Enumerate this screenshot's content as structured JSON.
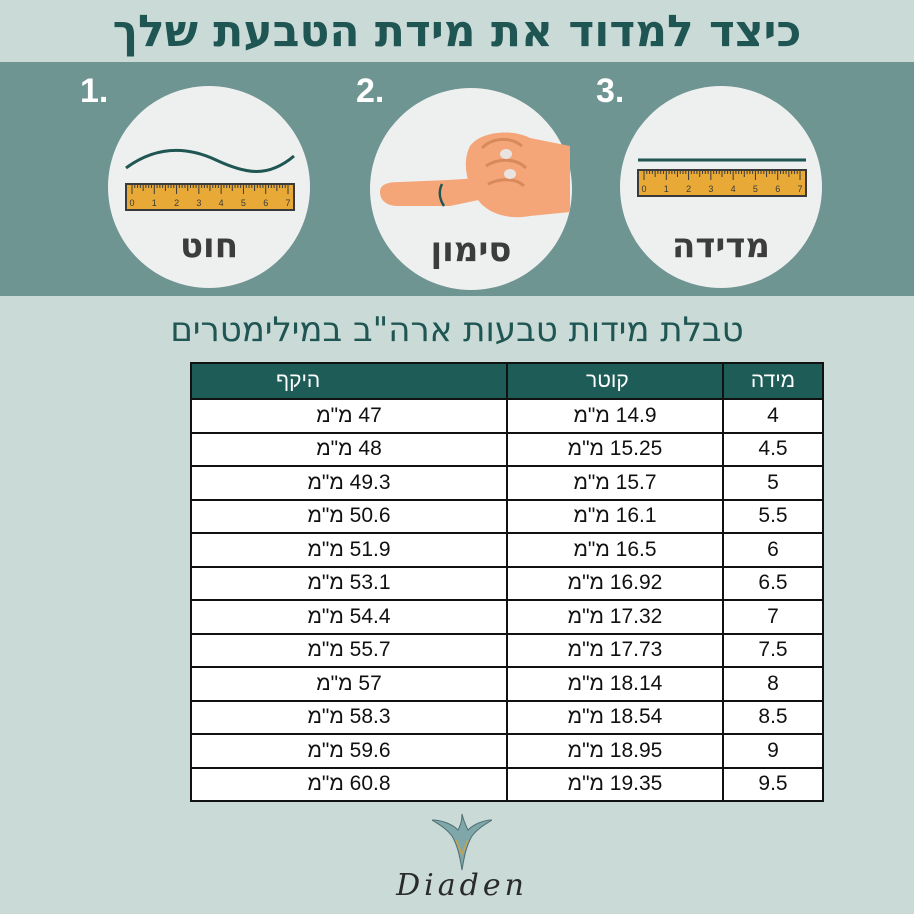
{
  "title": "כיצד למדוד את מידת הטבעת שלך",
  "steps": [
    {
      "number": "1.",
      "label": "חוט"
    },
    {
      "number": "2.",
      "label": "סימון"
    },
    {
      "number": "3.",
      "label": "מדידה"
    }
  ],
  "ruler_ticks": [
    "0",
    "1",
    "2",
    "3",
    "4",
    "5",
    "6",
    "7"
  ],
  "subtitle": "טבלת מידות טבעות ארה\"ב במילימטרים",
  "table": {
    "headers": {
      "circumference": "היקף",
      "diameter": "קוטר",
      "size": "מידה"
    },
    "rows": [
      {
        "circumference": "47 מ\"מ",
        "diameter": "14.9 מ\"מ",
        "size": "4"
      },
      {
        "circumference": "48 מ\"מ",
        "diameter": "15.25 מ\"מ",
        "size": "4.5"
      },
      {
        "circumference": "49.3 מ\"מ",
        "diameter": "15.7 מ\"מ",
        "size": "5"
      },
      {
        "circumference": "50.6 מ\"מ",
        "diameter": "16.1 מ\"מ",
        "size": "5.5"
      },
      {
        "circumference": "51.9 מ\"מ",
        "diameter": "16.5 מ\"מ",
        "size": "6"
      },
      {
        "circumference": "53.1 מ\"מ",
        "diameter": "16.92 מ\"מ",
        "size": "6.5"
      },
      {
        "circumference": "54.4 מ\"מ",
        "diameter": "17.32 מ\"מ",
        "size": "7"
      },
      {
        "circumference": "55.7 מ\"מ",
        "diameter": "17.73 מ\"מ",
        "size": "7.5"
      },
      {
        "circumference": "57 מ\"מ",
        "diameter": "18.14 מ\"מ",
        "size": "8"
      },
      {
        "circumference": "58.3 מ\"מ",
        "diameter": "18.54 מ\"מ",
        "size": "8.5"
      },
      {
        "circumference": "59.6 מ\"מ",
        "diameter": "18.95 מ\"מ",
        "size": "9"
      },
      {
        "circumference": "60.8 מ\"מ",
        "diameter": "19.35 מ\"מ",
        "size": "9.5"
      }
    ]
  },
  "brand": "Diaden",
  "colors": {
    "background": "#c9dad7",
    "band": "#6f9593",
    "accent": "#1d5c57",
    "ruler": "#e8a937"
  }
}
